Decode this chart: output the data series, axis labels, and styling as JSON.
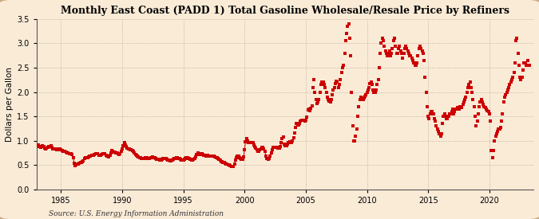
{
  "title": "Monthly East Coast (PADD 1) Total Gasoline Wholesale/Resale Price by Refiners",
  "ylabel": "Dollars per Gallon",
  "source": "Source: U.S. Energy Information Administration",
  "background_color": "#faebd7",
  "plot_bg_color": "#faebd7",
  "dot_color": "#cc0000",
  "border_color": "#c8a882",
  "xlim_start": 1983.0,
  "xlim_end": 2023.6,
  "ylim": [
    0.0,
    3.5
  ],
  "yticks": [
    0.0,
    0.5,
    1.0,
    1.5,
    2.0,
    2.5,
    3.0,
    3.5
  ],
  "xticks": [
    1985,
    1990,
    1995,
    2000,
    2005,
    2010,
    2015,
    2020
  ],
  "data": [
    [
      1983.17,
      0.92
    ],
    [
      1983.25,
      0.88
    ],
    [
      1983.33,
      0.87
    ],
    [
      1983.42,
      0.89
    ],
    [
      1983.5,
      0.9
    ],
    [
      1983.58,
      0.88
    ],
    [
      1983.67,
      0.85
    ],
    [
      1983.75,
      0.84
    ],
    [
      1983.83,
      0.85
    ],
    [
      1983.92,
      0.87
    ],
    [
      1984.0,
      0.88
    ],
    [
      1984.08,
      0.89
    ],
    [
      1984.17,
      0.9
    ],
    [
      1984.25,
      0.86
    ],
    [
      1984.33,
      0.84
    ],
    [
      1984.42,
      0.84
    ],
    [
      1984.5,
      0.84
    ],
    [
      1984.58,
      0.83
    ],
    [
      1984.67,
      0.82
    ],
    [
      1984.75,
      0.82
    ],
    [
      1984.83,
      0.83
    ],
    [
      1984.92,
      0.84
    ],
    [
      1985.0,
      0.82
    ],
    [
      1985.08,
      0.8
    ],
    [
      1985.17,
      0.79
    ],
    [
      1985.25,
      0.78
    ],
    [
      1985.33,
      0.78
    ],
    [
      1985.42,
      0.77
    ],
    [
      1985.5,
      0.76
    ],
    [
      1985.58,
      0.75
    ],
    [
      1985.67,
      0.74
    ],
    [
      1985.75,
      0.74
    ],
    [
      1985.83,
      0.73
    ],
    [
      1985.92,
      0.72
    ],
    [
      1986.0,
      0.65
    ],
    [
      1986.08,
      0.54
    ],
    [
      1986.17,
      0.49
    ],
    [
      1986.25,
      0.5
    ],
    [
      1986.33,
      0.52
    ],
    [
      1986.42,
      0.53
    ],
    [
      1986.5,
      0.54
    ],
    [
      1986.58,
      0.55
    ],
    [
      1986.67,
      0.56
    ],
    [
      1986.75,
      0.57
    ],
    [
      1986.83,
      0.59
    ],
    [
      1986.92,
      0.63
    ],
    [
      1987.0,
      0.65
    ],
    [
      1987.08,
      0.65
    ],
    [
      1987.17,
      0.66
    ],
    [
      1987.25,
      0.67
    ],
    [
      1987.33,
      0.68
    ],
    [
      1987.42,
      0.69
    ],
    [
      1987.5,
      0.7
    ],
    [
      1987.58,
      0.71
    ],
    [
      1987.67,
      0.71
    ],
    [
      1987.75,
      0.72
    ],
    [
      1987.83,
      0.73
    ],
    [
      1987.92,
      0.74
    ],
    [
      1988.0,
      0.73
    ],
    [
      1988.08,
      0.71
    ],
    [
      1988.17,
      0.7
    ],
    [
      1988.25,
      0.71
    ],
    [
      1988.33,
      0.72
    ],
    [
      1988.42,
      0.73
    ],
    [
      1988.5,
      0.74
    ],
    [
      1988.58,
      0.73
    ],
    [
      1988.67,
      0.71
    ],
    [
      1988.75,
      0.69
    ],
    [
      1988.83,
      0.68
    ],
    [
      1988.92,
      0.67
    ],
    [
      1989.0,
      0.71
    ],
    [
      1989.08,
      0.76
    ],
    [
      1989.17,
      0.8
    ],
    [
      1989.25,
      0.78
    ],
    [
      1989.33,
      0.77
    ],
    [
      1989.42,
      0.77
    ],
    [
      1989.5,
      0.76
    ],
    [
      1989.58,
      0.75
    ],
    [
      1989.67,
      0.73
    ],
    [
      1989.75,
      0.72
    ],
    [
      1989.83,
      0.74
    ],
    [
      1989.92,
      0.79
    ],
    [
      1990.0,
      0.84
    ],
    [
      1990.08,
      0.9
    ],
    [
      1990.17,
      0.96
    ],
    [
      1990.25,
      0.91
    ],
    [
      1990.33,
      0.89
    ],
    [
      1990.42,
      0.85
    ],
    [
      1990.5,
      0.84
    ],
    [
      1990.58,
      0.83
    ],
    [
      1990.67,
      0.82
    ],
    [
      1990.75,
      0.81
    ],
    [
      1990.83,
      0.8
    ],
    [
      1990.92,
      0.79
    ],
    [
      1991.0,
      0.75
    ],
    [
      1991.08,
      0.72
    ],
    [
      1991.17,
      0.7
    ],
    [
      1991.25,
      0.68
    ],
    [
      1991.33,
      0.67
    ],
    [
      1991.42,
      0.66
    ],
    [
      1991.5,
      0.65
    ],
    [
      1991.58,
      0.64
    ],
    [
      1991.67,
      0.63
    ],
    [
      1991.75,
      0.63
    ],
    [
      1991.83,
      0.64
    ],
    [
      1991.92,
      0.65
    ],
    [
      1992.0,
      0.65
    ],
    [
      1992.08,
      0.64
    ],
    [
      1992.17,
      0.63
    ],
    [
      1992.25,
      0.64
    ],
    [
      1992.33,
      0.65
    ],
    [
      1992.42,
      0.66
    ],
    [
      1992.5,
      0.67
    ],
    [
      1992.58,
      0.66
    ],
    [
      1992.67,
      0.65
    ],
    [
      1992.75,
      0.63
    ],
    [
      1992.83,
      0.62
    ],
    [
      1992.92,
      0.62
    ],
    [
      1993.0,
      0.62
    ],
    [
      1993.08,
      0.61
    ],
    [
      1993.17,
      0.61
    ],
    [
      1993.25,
      0.62
    ],
    [
      1993.33,
      0.63
    ],
    [
      1993.42,
      0.64
    ],
    [
      1993.5,
      0.64
    ],
    [
      1993.58,
      0.63
    ],
    [
      1993.67,
      0.62
    ],
    [
      1993.75,
      0.61
    ],
    [
      1993.83,
      0.6
    ],
    [
      1993.92,
      0.59
    ],
    [
      1994.0,
      0.59
    ],
    [
      1994.08,
      0.6
    ],
    [
      1994.17,
      0.62
    ],
    [
      1994.25,
      0.63
    ],
    [
      1994.33,
      0.64
    ],
    [
      1994.42,
      0.65
    ],
    [
      1994.5,
      0.65
    ],
    [
      1994.58,
      0.64
    ],
    [
      1994.67,
      0.63
    ],
    [
      1994.75,
      0.62
    ],
    [
      1994.83,
      0.61
    ],
    [
      1994.92,
      0.6
    ],
    [
      1995.0,
      0.6
    ],
    [
      1995.08,
      0.62
    ],
    [
      1995.17,
      0.64
    ],
    [
      1995.25,
      0.65
    ],
    [
      1995.33,
      0.65
    ],
    [
      1995.42,
      0.64
    ],
    [
      1995.5,
      0.63
    ],
    [
      1995.58,
      0.62
    ],
    [
      1995.67,
      0.61
    ],
    [
      1995.75,
      0.61
    ],
    [
      1995.83,
      0.62
    ],
    [
      1995.92,
      0.63
    ],
    [
      1996.0,
      0.67
    ],
    [
      1996.08,
      0.72
    ],
    [
      1996.17,
      0.75
    ],
    [
      1996.25,
      0.73
    ],
    [
      1996.33,
      0.72
    ],
    [
      1996.42,
      0.72
    ],
    [
      1996.5,
      0.73
    ],
    [
      1996.58,
      0.72
    ],
    [
      1996.67,
      0.71
    ],
    [
      1996.75,
      0.7
    ],
    [
      1996.83,
      0.69
    ],
    [
      1996.92,
      0.7
    ],
    [
      1997.0,
      0.7
    ],
    [
      1997.08,
      0.69
    ],
    [
      1997.17,
      0.68
    ],
    [
      1997.25,
      0.68
    ],
    [
      1997.33,
      0.68
    ],
    [
      1997.42,
      0.68
    ],
    [
      1997.5,
      0.68
    ],
    [
      1997.58,
      0.67
    ],
    [
      1997.67,
      0.66
    ],
    [
      1997.75,
      0.65
    ],
    [
      1997.83,
      0.64
    ],
    [
      1997.92,
      0.62
    ],
    [
      1998.0,
      0.6
    ],
    [
      1998.08,
      0.58
    ],
    [
      1998.17,
      0.57
    ],
    [
      1998.25,
      0.56
    ],
    [
      1998.33,
      0.55
    ],
    [
      1998.42,
      0.54
    ],
    [
      1998.5,
      0.53
    ],
    [
      1998.58,
      0.52
    ],
    [
      1998.67,
      0.51
    ],
    [
      1998.75,
      0.5
    ],
    [
      1998.83,
      0.49
    ],
    [
      1998.92,
      0.48
    ],
    [
      1999.0,
      0.47
    ],
    [
      1999.08,
      0.48
    ],
    [
      1999.17,
      0.52
    ],
    [
      1999.25,
      0.6
    ],
    [
      1999.33,
      0.65
    ],
    [
      1999.42,
      0.68
    ],
    [
      1999.5,
      0.68
    ],
    [
      1999.58,
      0.66
    ],
    [
      1999.67,
      0.64
    ],
    [
      1999.75,
      0.62
    ],
    [
      1999.83,
      0.62
    ],
    [
      1999.92,
      0.67
    ],
    [
      2000.0,
      0.82
    ],
    [
      2000.08,
      0.98
    ],
    [
      2000.17,
      1.05
    ],
    [
      2000.25,
      1.0
    ],
    [
      2000.33,
      0.97
    ],
    [
      2000.42,
      0.97
    ],
    [
      2000.5,
      0.96
    ],
    [
      2000.58,
      0.97
    ],
    [
      2000.67,
      0.96
    ],
    [
      2000.75,
      0.92
    ],
    [
      2000.83,
      0.88
    ],
    [
      2000.92,
      0.85
    ],
    [
      2001.0,
      0.82
    ],
    [
      2001.08,
      0.78
    ],
    [
      2001.17,
      0.78
    ],
    [
      2001.25,
      0.82
    ],
    [
      2001.33,
      0.84
    ],
    [
      2001.42,
      0.86
    ],
    [
      2001.5,
      0.87
    ],
    [
      2001.58,
      0.84
    ],
    [
      2001.67,
      0.78
    ],
    [
      2001.75,
      0.68
    ],
    [
      2001.83,
      0.64
    ],
    [
      2001.92,
      0.62
    ],
    [
      2002.0,
      0.63
    ],
    [
      2002.08,
      0.68
    ],
    [
      2002.17,
      0.75
    ],
    [
      2002.25,
      0.82
    ],
    [
      2002.33,
      0.86
    ],
    [
      2002.42,
      0.87
    ],
    [
      2002.5,
      0.87
    ],
    [
      2002.58,
      0.87
    ],
    [
      2002.67,
      0.86
    ],
    [
      2002.75,
      0.85
    ],
    [
      2002.83,
      0.85
    ],
    [
      2002.92,
      0.88
    ],
    [
      2003.0,
      0.96
    ],
    [
      2003.08,
      1.05
    ],
    [
      2003.17,
      1.08
    ],
    [
      2003.25,
      0.94
    ],
    [
      2003.33,
      0.9
    ],
    [
      2003.42,
      0.9
    ],
    [
      2003.5,
      0.93
    ],
    [
      2003.58,
      0.97
    ],
    [
      2003.67,
      0.98
    ],
    [
      2003.75,
      0.96
    ],
    [
      2003.83,
      0.97
    ],
    [
      2003.92,
      1.0
    ],
    [
      2004.0,
      1.07
    ],
    [
      2004.08,
      1.16
    ],
    [
      2004.17,
      1.28
    ],
    [
      2004.25,
      1.35
    ],
    [
      2004.33,
      1.32
    ],
    [
      2004.42,
      1.33
    ],
    [
      2004.5,
      1.35
    ],
    [
      2004.58,
      1.4
    ],
    [
      2004.67,
      1.42
    ],
    [
      2004.75,
      1.42
    ],
    [
      2004.83,
      1.43
    ],
    [
      2004.92,
      1.41
    ],
    [
      2005.0,
      1.42
    ],
    [
      2005.08,
      1.48
    ],
    [
      2005.17,
      1.63
    ],
    [
      2005.25,
      1.65
    ],
    [
      2005.33,
      1.62
    ],
    [
      2005.42,
      1.66
    ],
    [
      2005.5,
      1.72
    ],
    [
      2005.58,
      2.1
    ],
    [
      2005.67,
      2.25
    ],
    [
      2005.75,
      2.0
    ],
    [
      2005.83,
      1.85
    ],
    [
      2005.92,
      1.77
    ],
    [
      2006.0,
      1.8
    ],
    [
      2006.08,
      1.85
    ],
    [
      2006.17,
      2.0
    ],
    [
      2006.25,
      2.15
    ],
    [
      2006.33,
      2.2
    ],
    [
      2006.42,
      2.2
    ],
    [
      2006.5,
      2.15
    ],
    [
      2006.58,
      2.1
    ],
    [
      2006.67,
      2.0
    ],
    [
      2006.75,
      1.9
    ],
    [
      2006.83,
      1.85
    ],
    [
      2006.92,
      1.82
    ],
    [
      2007.0,
      1.8
    ],
    [
      2007.08,
      1.85
    ],
    [
      2007.17,
      1.95
    ],
    [
      2007.25,
      2.05
    ],
    [
      2007.33,
      2.1
    ],
    [
      2007.42,
      2.18
    ],
    [
      2007.5,
      2.22
    ],
    [
      2007.58,
      2.2
    ],
    [
      2007.67,
      2.1
    ],
    [
      2007.75,
      2.15
    ],
    [
      2007.83,
      2.25
    ],
    [
      2007.92,
      2.4
    ],
    [
      2008.0,
      2.5
    ],
    [
      2008.08,
      2.55
    ],
    [
      2008.17,
      2.8
    ],
    [
      2008.25,
      3.05
    ],
    [
      2008.33,
      3.2
    ],
    [
      2008.42,
      3.35
    ],
    [
      2008.5,
      3.4
    ],
    [
      2008.58,
      3.1
    ],
    [
      2008.67,
      2.75
    ],
    [
      2008.75,
      2.0
    ],
    [
      2008.83,
      1.3
    ],
    [
      2008.92,
      1.0
    ],
    [
      2009.0,
      1.0
    ],
    [
      2009.08,
      1.1
    ],
    [
      2009.17,
      1.25
    ],
    [
      2009.25,
      1.5
    ],
    [
      2009.33,
      1.7
    ],
    [
      2009.42,
      1.85
    ],
    [
      2009.5,
      1.9
    ],
    [
      2009.58,
      1.88
    ],
    [
      2009.67,
      1.85
    ],
    [
      2009.75,
      1.88
    ],
    [
      2009.83,
      1.92
    ],
    [
      2009.92,
      1.95
    ],
    [
      2010.0,
      2.0
    ],
    [
      2010.08,
      2.05
    ],
    [
      2010.17,
      2.1
    ],
    [
      2010.25,
      2.18
    ],
    [
      2010.33,
      2.2
    ],
    [
      2010.42,
      2.15
    ],
    [
      2010.5,
      2.05
    ],
    [
      2010.58,
      2.0
    ],
    [
      2010.67,
      2.0
    ],
    [
      2010.75,
      2.05
    ],
    [
      2010.83,
      2.15
    ],
    [
      2010.92,
      2.25
    ],
    [
      2011.0,
      2.5
    ],
    [
      2011.08,
      2.8
    ],
    [
      2011.17,
      3.0
    ],
    [
      2011.25,
      3.1
    ],
    [
      2011.33,
      3.05
    ],
    [
      2011.42,
      2.95
    ],
    [
      2011.5,
      2.85
    ],
    [
      2011.58,
      2.8
    ],
    [
      2011.67,
      2.75
    ],
    [
      2011.75,
      2.8
    ],
    [
      2011.83,
      2.85
    ],
    [
      2011.92,
      2.75
    ],
    [
      2012.0,
      2.8
    ],
    [
      2012.08,
      2.9
    ],
    [
      2012.17,
      3.05
    ],
    [
      2012.25,
      3.1
    ],
    [
      2012.33,
      2.95
    ],
    [
      2012.42,
      2.8
    ],
    [
      2012.5,
      2.8
    ],
    [
      2012.58,
      2.9
    ],
    [
      2012.67,
      2.95
    ],
    [
      2012.75,
      2.85
    ],
    [
      2012.83,
      2.8
    ],
    [
      2012.92,
      2.7
    ],
    [
      2013.0,
      2.8
    ],
    [
      2013.08,
      2.9
    ],
    [
      2013.17,
      2.95
    ],
    [
      2013.25,
      2.9
    ],
    [
      2013.33,
      2.85
    ],
    [
      2013.42,
      2.8
    ],
    [
      2013.5,
      2.75
    ],
    [
      2013.58,
      2.75
    ],
    [
      2013.67,
      2.7
    ],
    [
      2013.75,
      2.65
    ],
    [
      2013.83,
      2.6
    ],
    [
      2013.92,
      2.55
    ],
    [
      2014.0,
      2.55
    ],
    [
      2014.08,
      2.6
    ],
    [
      2014.17,
      2.75
    ],
    [
      2014.25,
      2.9
    ],
    [
      2014.33,
      2.95
    ],
    [
      2014.42,
      2.9
    ],
    [
      2014.5,
      2.85
    ],
    [
      2014.58,
      2.8
    ],
    [
      2014.67,
      2.65
    ],
    [
      2014.75,
      2.3
    ],
    [
      2014.83,
      2.0
    ],
    [
      2014.92,
      1.7
    ],
    [
      2015.0,
      1.5
    ],
    [
      2015.08,
      1.45
    ],
    [
      2015.17,
      1.55
    ],
    [
      2015.25,
      1.6
    ],
    [
      2015.33,
      1.6
    ],
    [
      2015.42,
      1.55
    ],
    [
      2015.5,
      1.45
    ],
    [
      2015.58,
      1.4
    ],
    [
      2015.67,
      1.3
    ],
    [
      2015.75,
      1.25
    ],
    [
      2015.83,
      1.2
    ],
    [
      2015.92,
      1.15
    ],
    [
      2016.0,
      1.1
    ],
    [
      2016.08,
      1.15
    ],
    [
      2016.17,
      1.35
    ],
    [
      2016.25,
      1.5
    ],
    [
      2016.33,
      1.55
    ],
    [
      2016.42,
      1.5
    ],
    [
      2016.5,
      1.45
    ],
    [
      2016.58,
      1.45
    ],
    [
      2016.67,
      1.5
    ],
    [
      2016.75,
      1.55
    ],
    [
      2016.83,
      1.55
    ],
    [
      2016.92,
      1.6
    ],
    [
      2017.0,
      1.65
    ],
    [
      2017.08,
      1.55
    ],
    [
      2017.17,
      1.6
    ],
    [
      2017.25,
      1.65
    ],
    [
      2017.33,
      1.65
    ],
    [
      2017.42,
      1.68
    ],
    [
      2017.5,
      1.65
    ],
    [
      2017.58,
      1.7
    ],
    [
      2017.67,
      1.68
    ],
    [
      2017.75,
      1.68
    ],
    [
      2017.83,
      1.75
    ],
    [
      2017.92,
      1.8
    ],
    [
      2018.0,
      1.85
    ],
    [
      2018.08,
      1.9
    ],
    [
      2018.17,
      2.0
    ],
    [
      2018.25,
      2.1
    ],
    [
      2018.33,
      2.15
    ],
    [
      2018.42,
      2.2
    ],
    [
      2018.5,
      2.1
    ],
    [
      2018.58,
      2.0
    ],
    [
      2018.67,
      1.85
    ],
    [
      2018.75,
      1.7
    ],
    [
      2018.83,
      1.5
    ],
    [
      2018.92,
      1.3
    ],
    [
      2019.0,
      1.4
    ],
    [
      2019.08,
      1.55
    ],
    [
      2019.17,
      1.7
    ],
    [
      2019.25,
      1.8
    ],
    [
      2019.33,
      1.85
    ],
    [
      2019.42,
      1.8
    ],
    [
      2019.5,
      1.75
    ],
    [
      2019.58,
      1.7
    ],
    [
      2019.67,
      1.68
    ],
    [
      2019.75,
      1.65
    ],
    [
      2019.83,
      1.62
    ],
    [
      2019.92,
      1.6
    ],
    [
      2020.0,
      1.55
    ],
    [
      2020.08,
      1.4
    ],
    [
      2020.17,
      0.8
    ],
    [
      2020.25,
      0.65
    ],
    [
      2020.33,
      0.8
    ],
    [
      2020.42,
      1.0
    ],
    [
      2020.5,
      1.1
    ],
    [
      2020.58,
      1.15
    ],
    [
      2020.67,
      1.2
    ],
    [
      2020.75,
      1.25
    ],
    [
      2020.83,
      1.25
    ],
    [
      2020.92,
      1.28
    ],
    [
      2021.0,
      1.4
    ],
    [
      2021.08,
      1.55
    ],
    [
      2021.17,
      1.8
    ],
    [
      2021.25,
      1.9
    ],
    [
      2021.33,
      1.95
    ],
    [
      2021.42,
      2.0
    ],
    [
      2021.5,
      2.05
    ],
    [
      2021.58,
      2.1
    ],
    [
      2021.67,
      2.15
    ],
    [
      2021.75,
      2.2
    ],
    [
      2021.83,
      2.25
    ],
    [
      2021.92,
      2.3
    ],
    [
      2022.0,
      2.4
    ],
    [
      2022.08,
      2.6
    ],
    [
      2022.17,
      3.05
    ],
    [
      2022.25,
      3.1
    ],
    [
      2022.33,
      2.8
    ],
    [
      2022.42,
      2.55
    ],
    [
      2022.5,
      2.3
    ],
    [
      2022.58,
      2.25
    ],
    [
      2022.67,
      2.3
    ],
    [
      2022.75,
      2.45
    ],
    [
      2022.83,
      2.6
    ],
    [
      2022.92,
      2.6
    ],
    [
      2023.0,
      2.55
    ],
    [
      2023.17,
      2.65
    ],
    [
      2023.25,
      2.55
    ]
  ]
}
